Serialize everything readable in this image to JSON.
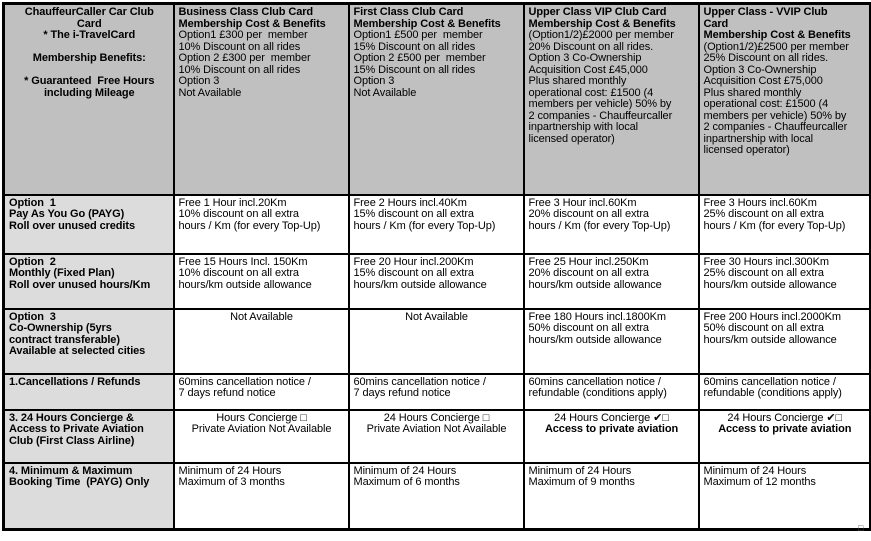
{
  "colors": {
    "header_bg": "#c0c0c0",
    "label_bg": "#dcdcdc",
    "border": "#000000",
    "cell_bg": "#ffffff"
  },
  "stray_glyph": "□",
  "table": {
    "header": {
      "label_col": {
        "lines": [
          "ChauffeurCaller Car Club",
          "Card",
          "* The i-TravelCard",
          "",
          "Membership Benefits:",
          "",
          "* Guaranteed  Free Hours",
          "including Mileage"
        ]
      },
      "cols": [
        {
          "title_lines": [
            "Business Class Club Card",
            "Membership Cost & Benefits"
          ],
          "lines": [
            "Option1 £300 per  member",
            "10% Discount on all rides",
            "Option 2 £300 per  member",
            "10% Discount on all rides",
            "Option 3",
            "Not Available"
          ]
        },
        {
          "title_lines": [
            "First Class Club Card",
            "Membership Cost & Benefits"
          ],
          "lines": [
            "Option1 £500 per  member",
            "15% Discount on all rides",
            "Option 2 £500 per  member",
            "15% Discount on all rides",
            "Option 3",
            "Not Available"
          ]
        },
        {
          "title_lines": [
            "Upper Class VIP Club Card",
            "Membership Cost & Benefits"
          ],
          "lines": [
            "(Option1/2)£2000 per member",
            "20% Discount on all rides.",
            "Option 3 Co-Ownership",
            "Acquisition Cost £45,000",
            "Plus shared monthly",
            "operational cost: £1500 (4",
            "members per vehicle) 50% by",
            "2 companies - Chauffeurcaller",
            "inpartnership with local",
            "licensed operator)"
          ]
        },
        {
          "title_lines": [
            "Upper Class - VVIP Club",
            "Card",
            "Membership Cost & Benefits"
          ],
          "lines": [
            "(Option1/2)£2500 per member",
            "25% Discount on all rides.",
            "Option 3 Co-Ownership",
            "Acquisition Cost £75,000",
            "Plus shared monthly",
            "operational cost: £1500 (4",
            "members per vehicle) 50% by",
            "2 companies - Chauffeurcaller",
            "inpartnership with local",
            "licensed operator)"
          ]
        }
      ]
    },
    "rows": [
      {
        "label_lines": [
          "Option  1",
          "Pay As You Go (PAYG)",
          "Roll over unused credits"
        ],
        "cells": [
          {
            "lines": [
              "Free 1 Hour incl.20Km",
              "10% discount on all extra",
              "hours / Km (for every Top-Up)"
            ]
          },
          {
            "lines": [
              "Free 2 Hours incl.40Km",
              "15% discount on all extra",
              "hours / Km (for every Top-Up)"
            ]
          },
          {
            "lines": [
              "Free 3 Hour incl.60Km",
              "20% discount on all extra",
              "hours / Km (for every Top-Up)"
            ]
          },
          {
            "lines": [
              "Free 3 Hours incl.60Km",
              "25% discount on all extra",
              "hours / Km (for every Top-Up)"
            ]
          }
        ]
      },
      {
        "label_lines": [
          "Option  2",
          "Monthly (Fixed Plan)",
          "Roll over unused hours/Km"
        ],
        "cells": [
          {
            "lines": [
              "Free 15 Hours Incl. 150Km",
              "10% discount on all extra",
              "hours/km outside allowance"
            ]
          },
          {
            "lines": [
              "Free 20 Hour incl.200Km",
              "15% discount on all extra",
              "hours/km outside allowance"
            ]
          },
          {
            "lines": [
              "Free 25 Hour incl.250Km",
              "20% discount on all extra",
              "hours/km outside allowance"
            ]
          },
          {
            "lines": [
              "Free 30 Hours incl.300Km",
              "25% discount on all extra",
              "hours/km outside allowance"
            ]
          }
        ]
      },
      {
        "label_lines": [
          "Option  3",
          "Co-Ownership (5yrs",
          "contract transferable)",
          "Available at selected cities"
        ],
        "cells": [
          {
            "lines": [
              "Not Available"
            ]
          },
          {
            "lines": [
              "Not Available"
            ]
          },
          {
            "lines": [
              "Free 180 Hours incl.1800Km",
              "50% discount on all extra",
              "hours/km outside allowance"
            ]
          },
          {
            "lines": [
              "Free 200 Hours incl.2000Km",
              "50% discount on all extra",
              "hours/km outside allowance"
            ]
          }
        ]
      },
      {
        "label_lines": [
          "1.Cancellations / Refunds"
        ],
        "cells": [
          {
            "lines": [
              "60mins cancellation notice /",
              "7 days refund notice"
            ]
          },
          {
            "lines": [
              "60mins cancellation notice /",
              "7 days refund notice"
            ]
          },
          {
            "lines": [
              "60mins cancellation notice /",
              "refundable (conditions apply)"
            ]
          },
          {
            "lines": [
              "60mins cancellation notice /",
              "refundable (conditions apply)"
            ]
          }
        ]
      },
      {
        "label_lines": [
          "3. 24 Hours Concierge &",
          "Access to Private Aviation",
          "Club (First Class Airline)"
        ],
        "cells": [
          {
            "lines": [
              "Hours Concierge □",
              "Private Aviation Not Available"
            ]
          },
          {
            "lines": [
              "24 Hours Concierge □",
              "Private Aviation Not Available"
            ]
          },
          {
            "lines": [
              "24 Hours Concierge ✔□",
              "Access to private aviation"
            ]
          },
          {
            "lines": [
              "24 Hours Concierge ✔□",
              "Access to private aviation"
            ]
          }
        ]
      },
      {
        "label_lines": [
          "4. Minimum & Maximum",
          "Booking Time  (PAYG) Only"
        ],
        "cells": [
          {
            "lines": [
              "Minimum of 24 Hours",
              "Maximum of 3 months"
            ]
          },
          {
            "lines": [
              "Minimum of 24 Hours",
              "Maximum of 6 months"
            ]
          },
          {
            "lines": [
              "Minimum of 24 Hours",
              "Maximum of 9 months"
            ]
          },
          {
            "lines": [
              "Minimum of 24 Hours",
              "Maximum of 12 months"
            ]
          }
        ]
      }
    ]
  }
}
